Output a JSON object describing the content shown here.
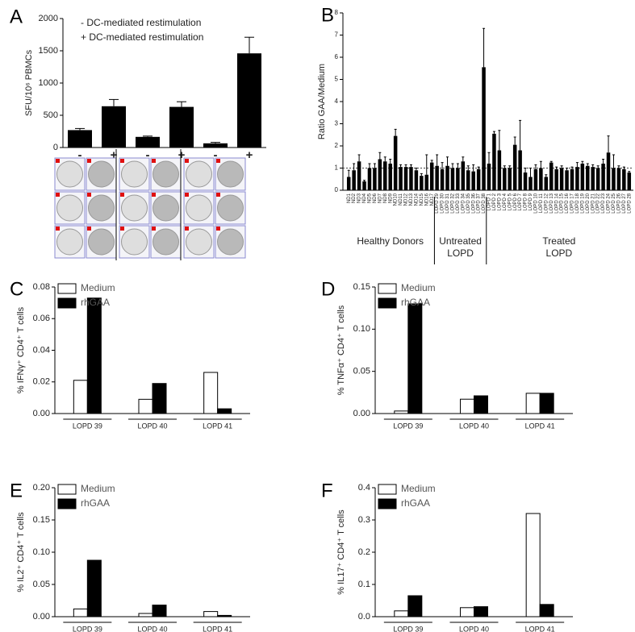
{
  "chart_data": [
    {
      "type": "bar",
      "panel": "A",
      "ylabel": "SFU/10⁶ PBMCs",
      "annotations": [
        "- DC-mediated restimulation",
        "+ DC-mediated restimulation"
      ],
      "categories": [
        "-",
        "+",
        "-",
        "+",
        "-",
        "+"
      ],
      "values": [
        270,
        640,
        165,
        630,
        65,
        1460
      ],
      "errors": [
        25,
        105,
        12,
        80,
        15,
        250
      ],
      "color": "#000000",
      "ylim": [
        0,
        2000
      ],
      "yticks": [
        0,
        500,
        1000,
        1500,
        2000
      ]
    },
    {
      "type": "bar",
      "panel": "B",
      "ylabel": "Ratio GAA/Medium",
      "color": "#000000",
      "ylim": [
        0,
        8
      ],
      "yticks": [
        0,
        1,
        2,
        3,
        4,
        5,
        6,
        7,
        8
      ],
      "reference_line": 1,
      "groups": [
        {
          "label": [
            "Healthy Donors"
          ],
          "categories": [
            "ND1",
            "ND2",
            "ND3",
            "ND4",
            "ND5",
            "ND6",
            "ND7",
            "ND8",
            "ND9",
            "ND10",
            "ND11",
            "ND12",
            "ND13",
            "ND14",
            "ND15",
            "ND16",
            "ND17"
          ],
          "values": [
            0.6,
            0.9,
            1.3,
            0.4,
            1.0,
            1.0,
            1.4,
            1.3,
            1.2,
            2.45,
            1.05,
            1.05,
            1.05,
            0.9,
            0.65,
            0.7,
            1.25
          ],
          "errors": [
            0.3,
            0.3,
            0.3,
            0.05,
            0.2,
            0.2,
            0.3,
            0.2,
            0.2,
            0.3,
            0.1,
            0.1,
            0.1,
            0.1,
            0.1,
            0.9,
            0.1
          ]
        },
        {
          "label": [
            "Untreated",
            "LOPD"
          ],
          "categories": [
            "LOPD 29",
            "LOPD 30",
            "LOPD 31",
            "LOPD 32",
            "LOPD 33",
            "LOPD 34",
            "LOPD 35",
            "LOPD 36",
            "LOPD 37",
            "LOPD 38"
          ],
          "values": [
            1.1,
            0.95,
            1.1,
            1.0,
            1.0,
            1.3,
            0.9,
            0.85,
            0.95,
            5.55
          ],
          "errors": [
            0.5,
            0.3,
            0.4,
            0.2,
            0.2,
            0.2,
            0.2,
            0.3,
            0.1,
            1.75
          ]
        },
        {
          "label": [
            "Treated",
            "LOPD"
          ],
          "categories": [
            "LOPD 1",
            "LOPD 2",
            "LOPD 3",
            "LOPD 4",
            "LOPD 5",
            "LOPD 6",
            "LOPD 7",
            "LOPD 8",
            "LOPD 9",
            "LOPD 10",
            "LOPD 11",
            "LOPD 12",
            "LOPD 13",
            "LOPD 14",
            "LOPD 15",
            "LOPD 16",
            "LOPD 17",
            "LOPD 18",
            "LOPD 19",
            "LOPD 20",
            "LOPD 21",
            "LOPD 22",
            "LOPD 23",
            "LOPD 24",
            "LOPD 25",
            "LOPD 26",
            "LOPD 27",
            "LOPD 28"
          ],
          "values": [
            1.2,
            2.55,
            1.8,
            1.0,
            1.0,
            2.05,
            1.8,
            0.8,
            0.6,
            0.95,
            1.0,
            0.6,
            1.25,
            0.95,
            1.0,
            0.9,
            0.95,
            1.05,
            1.2,
            1.1,
            1.05,
            1.0,
            1.2,
            1.7,
            1.0,
            1.0,
            0.95,
            0.8
          ],
          "errors": [
            0.5,
            0.1,
            0.9,
            0.1,
            0.1,
            0.35,
            1.35,
            0.2,
            0.4,
            0.2,
            0.3,
            0.1,
            0.05,
            0.1,
            0.1,
            0.1,
            0.1,
            0.2,
            0.1,
            0.1,
            0.1,
            0.1,
            0.2,
            0.75,
            0.6,
            0.1,
            0.1,
            0.05
          ]
        }
      ]
    },
    {
      "type": "bar",
      "panel": "C",
      "ylabel": "% IFNγ⁺ CD4⁺ T cells",
      "categories": [
        "LOPD 39",
        "LOPD 40",
        "LOPD 41"
      ],
      "series": [
        {
          "name": "Medium",
          "color": "#ffffff",
          "values": [
            0.021,
            0.009,
            0.026
          ]
        },
        {
          "name": "rhGAA",
          "color": "#000000",
          "values": [
            0.073,
            0.019,
            0.003
          ]
        }
      ],
      "ylim": [
        0,
        0.08
      ],
      "yticks": [
        {
          "value": 0,
          "label": "0.00"
        },
        0.02,
        0.04,
        0.06,
        0.08
      ]
    },
    {
      "type": "bar",
      "panel": "D",
      "ylabel": "% TNFα⁺ CD4⁺ T cells",
      "categories": [
        "LOPD 39",
        "LOPD 40",
        "LOPD 41"
      ],
      "series": [
        {
          "name": "Medium",
          "color": "#ffffff",
          "values": [
            0.003,
            0.017,
            0.024
          ]
        },
        {
          "name": "rhGAA",
          "color": "#000000",
          "values": [
            0.13,
            0.021,
            0.024
          ]
        }
      ],
      "ylim": [
        0,
        0.15
      ],
      "yticks": [
        {
          "value": 0,
          "label": "0.00"
        },
        0.05,
        {
          "value": 0.1,
          "label": "0.10"
        },
        0.15
      ]
    },
    {
      "type": "bar",
      "panel": "E",
      "ylabel": "% IL2⁺ CD4⁺ T cells",
      "categories": [
        "LOPD 39",
        "LOPD 40",
        "LOPD 41"
      ],
      "series": [
        {
          "name": "Medium",
          "color": "#ffffff",
          "values": [
            0.012,
            0.005,
            0.008
          ]
        },
        {
          "name": "rhGAA",
          "color": "#000000",
          "values": [
            0.0875,
            0.018,
            0.002
          ]
        }
      ],
      "ylim": [
        0,
        0.2
      ],
      "yticks": [
        {
          "value": 0,
          "label": "0.00"
        },
        0.05,
        {
          "value": 0.1,
          "label": "0.10"
        },
        0.15,
        {
          "value": 0.2,
          "label": "0.20"
        }
      ]
    },
    {
      "type": "bar",
      "panel": "F",
      "ylabel": "% IL17⁺ CD4⁺ T cells",
      "categories": [
        "LOPD 39",
        "LOPD 40",
        "LOPD 41"
      ],
      "series": [
        {
          "name": "Medium",
          "color": "#ffffff",
          "values": [
            0.018,
            0.028,
            0.32
          ]
        },
        {
          "name": "rhGAA",
          "color": "#000000",
          "values": [
            0.065,
            0.031,
            0.038
          ]
        }
      ],
      "ylim": [
        0,
        0.4
      ],
      "yticks": [
        {
          "value": 0,
          "label": "0.0"
        },
        0.1,
        0.2,
        0.3,
        0.4
      ]
    }
  ]
}
